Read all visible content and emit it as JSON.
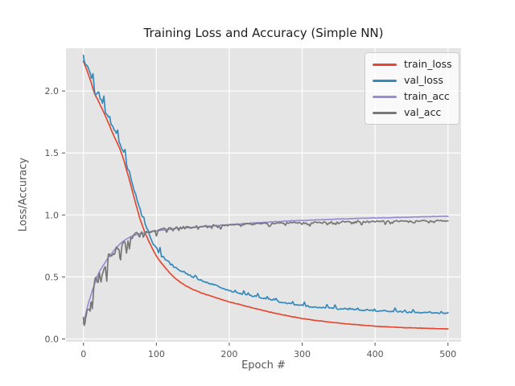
{
  "chart_data": {
    "type": "line",
    "title": "Training Loss and Accuracy (Simple NN)",
    "xlabel": "Epoch #",
    "ylabel": "Loss/Accuracy",
    "xlim": [
      -24,
      518
    ],
    "ylim": [
      -0.023,
      2.345
    ],
    "grid": true,
    "xticks": {
      "values": [
        0,
        100,
        200,
        300,
        400,
        500
      ],
      "labels": [
        "0",
        "100",
        "200",
        "300",
        "400",
        "500"
      ]
    },
    "yticks": {
      "values": [
        0,
        0.5,
        1.0,
        1.5,
        2.0
      ],
      "labels": [
        "0.0",
        "0.5",
        "1.0",
        "1.5",
        "2.0"
      ]
    },
    "colors": {
      "figure_bg": "#ffffff",
      "axes_bg": "#e5e5e5",
      "grid": "#ffffff",
      "tick": "#555555",
      "label": "#555555",
      "title": "#1f1f1f",
      "legend_text": "#262626"
    },
    "legend": {
      "position": "upper right",
      "entries": [
        "train_loss",
        "val_loss",
        "train_acc",
        "val_acc"
      ]
    },
    "series": [
      {
        "name": "train_loss",
        "color": "#E24A33",
        "noise_bias": "none",
        "points": [
          [
            0,
            2.24
          ],
          [
            10,
            2.08
          ],
          [
            14,
            2.0
          ],
          [
            22,
            1.9
          ],
          [
            30,
            1.8
          ],
          [
            40,
            1.66
          ],
          [
            52,
            1.5
          ],
          [
            64,
            1.26
          ],
          [
            76,
            1.0
          ],
          [
            85,
            0.85
          ],
          [
            100,
            0.67
          ],
          [
            115,
            0.555
          ],
          [
            130,
            0.47
          ],
          [
            150,
            0.4
          ],
          [
            175,
            0.345
          ],
          [
            200,
            0.3
          ],
          [
            250,
            0.225
          ],
          [
            300,
            0.165
          ],
          [
            350,
            0.128
          ],
          [
            400,
            0.103
          ],
          [
            450,
            0.089
          ],
          [
            500,
            0.08
          ]
        ],
        "noise_amp": [
          [
            0,
            0.006
          ],
          [
            100,
            0.004
          ],
          [
            500,
            0.003
          ]
        ]
      },
      {
        "name": "val_loss",
        "color": "#348ABD",
        "noise_bias": "up",
        "points": [
          [
            0,
            2.26
          ],
          [
            10,
            2.11
          ],
          [
            14,
            2.03
          ],
          [
            22,
            1.93
          ],
          [
            30,
            1.84
          ],
          [
            40,
            1.7
          ],
          [
            52,
            1.55
          ],
          [
            64,
            1.32
          ],
          [
            76,
            1.07
          ],
          [
            85,
            0.92
          ],
          [
            100,
            0.73
          ],
          [
            115,
            0.63
          ],
          [
            130,
            0.56
          ],
          [
            150,
            0.5
          ],
          [
            175,
            0.445
          ],
          [
            200,
            0.39
          ],
          [
            250,
            0.325
          ],
          [
            300,
            0.27
          ],
          [
            350,
            0.245
          ],
          [
            400,
            0.228
          ],
          [
            450,
            0.216
          ],
          [
            500,
            0.208
          ]
        ],
        "noise_amp": [
          [
            0,
            0.055
          ],
          [
            40,
            0.05
          ],
          [
            80,
            0.035
          ],
          [
            120,
            0.022
          ],
          [
            200,
            0.016
          ],
          [
            500,
            0.013
          ]
        ]
      },
      {
        "name": "train_acc",
        "color": "#988ED5",
        "noise_bias": "none",
        "points": [
          [
            0,
            0.13
          ],
          [
            5,
            0.25
          ],
          [
            10,
            0.35
          ],
          [
            15,
            0.44
          ],
          [
            20,
            0.52
          ],
          [
            30,
            0.62
          ],
          [
            40,
            0.7
          ],
          [
            50,
            0.765
          ],
          [
            60,
            0.81
          ],
          [
            75,
            0.845
          ],
          [
            90,
            0.862
          ],
          [
            100,
            0.872
          ],
          [
            125,
            0.89
          ],
          [
            150,
            0.9
          ],
          [
            200,
            0.922
          ],
          [
            250,
            0.941
          ],
          [
            300,
            0.956
          ],
          [
            350,
            0.967
          ],
          [
            400,
            0.976
          ],
          [
            450,
            0.983
          ],
          [
            500,
            0.99
          ]
        ],
        "noise_amp": [
          [
            0,
            0.01
          ],
          [
            30,
            0.006
          ],
          [
            100,
            0.005
          ],
          [
            500,
            0.004
          ]
        ]
      },
      {
        "name": "val_acc",
        "color": "#777777",
        "noise_bias": "down",
        "points": [
          [
            0,
            0.11
          ],
          [
            5,
            0.22
          ],
          [
            10,
            0.32
          ],
          [
            15,
            0.41
          ],
          [
            20,
            0.49
          ],
          [
            30,
            0.6
          ],
          [
            40,
            0.69
          ],
          [
            50,
            0.75
          ],
          [
            60,
            0.8
          ],
          [
            75,
            0.845
          ],
          [
            90,
            0.868
          ],
          [
            100,
            0.878
          ],
          [
            125,
            0.895
          ],
          [
            150,
            0.905
          ],
          [
            200,
            0.92
          ],
          [
            250,
            0.932
          ],
          [
            300,
            0.94
          ],
          [
            350,
            0.945
          ],
          [
            400,
            0.949
          ],
          [
            450,
            0.952
          ],
          [
            500,
            0.955
          ]
        ],
        "noise_amp": [
          [
            0,
            0.13
          ],
          [
            20,
            0.115
          ],
          [
            40,
            0.08
          ],
          [
            70,
            0.045
          ],
          [
            100,
            0.025
          ],
          [
            150,
            0.015
          ],
          [
            500,
            0.013
          ]
        ]
      }
    ]
  }
}
